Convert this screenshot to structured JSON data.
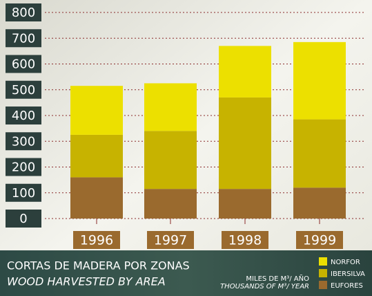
{
  "chart_data": {
    "type": "stacked-bar",
    "title": "CORTAS DE MADERA POR ZONAS",
    "subtitle": "WOOD HARVESTED BY AREA",
    "unit": "MILES DE M³/ AÑO",
    "unit_en": "THOUSANDS OF M³/ YEAR",
    "categories": [
      "1996",
      "1997",
      "1998",
      "1999"
    ],
    "series": [
      {
        "name": "EUFORES",
        "color": "#9a6a2e",
        "values": [
          160,
          115,
          115,
          120
        ]
      },
      {
        "name": "IBERSILVA",
        "color": "#c7b300",
        "values": [
          165,
          225,
          355,
          265
        ]
      },
      {
        "name": "NORFOR",
        "color": "#ece000",
        "values": [
          190,
          185,
          200,
          300
        ]
      }
    ],
    "ylim": [
      0,
      800
    ],
    "yticks": [
      0,
      100,
      200,
      300,
      400,
      500,
      600,
      700,
      800
    ],
    "grid": true
  }
}
